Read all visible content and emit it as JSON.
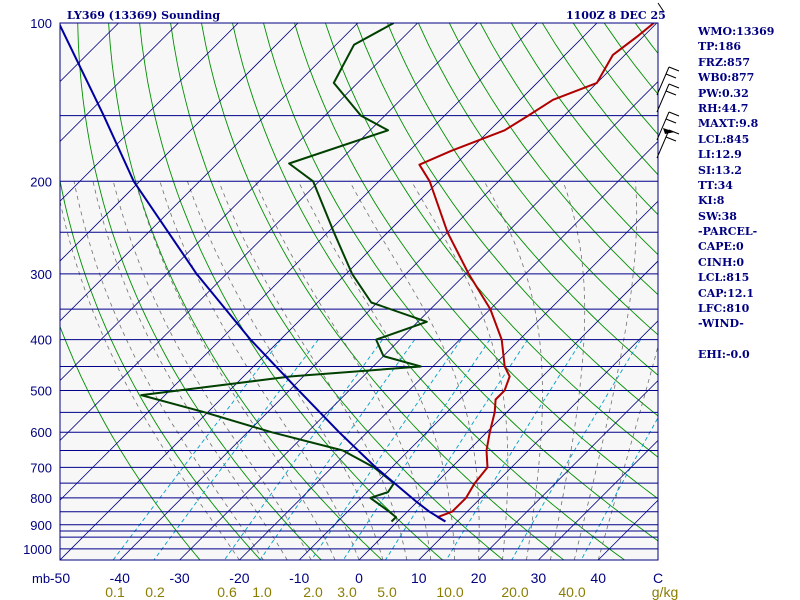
{
  "header": {
    "title": "LY369 (13369) Sounding",
    "datetime": "1100Z  8 DEC 25"
  },
  "indices": [
    "WMO:13369",
    "TP:186",
    "FRZ:857",
    "WB0:877",
    "PW:0.32",
    "RH:44.7",
    "MAXT:9.8",
    "LCL:845",
    "LI:12.9",
    "SI:13.2",
    "TT:34",
    "KI:8",
    "SW:38",
    "-PARCEL-",
    "CAPE:0",
    "CINH:0",
    "LCL:815",
    "CAP:12.1",
    "LFC:810",
    "-WIND-",
    "",
    "EHI:-0.0"
  ],
  "chart_data": {
    "type": "line",
    "title": "LY369 (13369) Sounding",
    "chart_kind": "skew-T log-P",
    "pressure_ticks": [
      "100",
      "200",
      "300",
      "400",
      "500",
      "600",
      "700",
      "800",
      "900",
      "1000"
    ],
    "pressure_axis_label": "mb",
    "temperature_ticks": [
      "-50",
      "-40",
      "-30",
      "-20",
      "-10",
      "0",
      "10",
      "20",
      "30",
      "40",
      "C"
    ],
    "mixing_ratio_ticks": [
      "0.1",
      "0.2",
      "0.6",
      "1.0",
      "2.0",
      "3.0",
      "5.0",
      "10.0",
      "20.0",
      "40.0",
      "g/kg"
    ],
    "pressure_range_hPa": [
      100,
      1050
    ],
    "temperature_range_at_surface_C": [
      -50,
      50
    ],
    "isobar_levels_hPa": [
      100,
      150,
      200,
      250,
      300,
      350,
      400,
      450,
      500,
      550,
      600,
      650,
      700,
      750,
      800,
      850,
      900,
      925,
      950,
      1000
    ],
    "series": [
      {
        "name": "Temperature",
        "color": "#b00000",
        "points": [
          {
            "p": 887,
            "t": 8.0
          },
          {
            "p": 870,
            "t": 6.0
          },
          {
            "p": 850,
            "t": 7.5
          },
          {
            "p": 800,
            "t": 7.5
          },
          {
            "p": 750,
            "t": 6.5
          },
          {
            "p": 700,
            "t": 6.0
          },
          {
            "p": 650,
            "t": 3.0
          },
          {
            "p": 600,
            "t": 0.5
          },
          {
            "p": 550,
            "t": -2.0
          },
          {
            "p": 520,
            "t": -4.0
          },
          {
            "p": 500,
            "t": -4.0
          },
          {
            "p": 470,
            "t": -5.5
          },
          {
            "p": 450,
            "t": -8.0
          },
          {
            "p": 400,
            "t": -13.0
          },
          {
            "p": 350,
            "t": -20.0
          },
          {
            "p": 300,
            "t": -29.5
          },
          {
            "p": 250,
            "t": -40.0
          },
          {
            "p": 200,
            "t": -51.5
          },
          {
            "p": 186,
            "t": -56.0
          },
          {
            "p": 175,
            "t": -53.0
          },
          {
            "p": 160,
            "t": -47.5
          },
          {
            "p": 150,
            "t": -46.0
          },
          {
            "p": 140,
            "t": -44.5
          },
          {
            "p": 130,
            "t": -40.0
          },
          {
            "p": 115,
            "t": -42.0
          },
          {
            "p": 106,
            "t": -41.0
          },
          {
            "p": 100,
            "t": -40.5
          }
        ]
      },
      {
        "name": "Dewpoint",
        "color": "#004000",
        "points": [
          {
            "p": 887,
            "t": -1.0
          },
          {
            "p": 870,
            "t": -1.0
          },
          {
            "p": 850,
            "t": -3.0
          },
          {
            "p": 800,
            "t": -8.5
          },
          {
            "p": 780,
            "t": -6.5
          },
          {
            "p": 750,
            "t": -7.0
          },
          {
            "p": 700,
            "t": -13.0
          },
          {
            "p": 650,
            "t": -21.0
          },
          {
            "p": 600,
            "t": -36.0
          },
          {
            "p": 550,
            "t": -50.5
          },
          {
            "p": 510,
            "t": -64.0
          },
          {
            "p": 470,
            "t": -42.0
          },
          {
            "p": 450,
            "t": -22.0
          },
          {
            "p": 430,
            "t": -30.0
          },
          {
            "p": 400,
            "t": -34.0
          },
          {
            "p": 370,
            "t": -28.5
          },
          {
            "p": 340,
            "t": -41.0
          },
          {
            "p": 300,
            "t": -49.0
          },
          {
            "p": 250,
            "t": -59.0
          },
          {
            "p": 200,
            "t": -71.0
          },
          {
            "p": 185,
            "t": -78.0
          },
          {
            "p": 160,
            "t": -67.0
          },
          {
            "p": 150,
            "t": -74.0
          },
          {
            "p": 130,
            "t": -84.0
          },
          {
            "p": 110,
            "t": -87.0
          },
          {
            "p": 100,
            "t": -84.0
          }
        ]
      },
      {
        "name": "Parcel",
        "color": "#0000a0",
        "points": [
          {
            "p": 887,
            "t": 8.0
          },
          {
            "p": 850,
            "t": 3.7
          },
          {
            "p": 815,
            "t": 0.0
          },
          {
            "p": 700,
            "t": -12.7
          },
          {
            "p": 600,
            "t": -24.7
          },
          {
            "p": 500,
            "t": -38.4
          },
          {
            "p": 400,
            "t": -55.0
          },
          {
            "p": 300,
            "t": -75.0
          },
          {
            "p": 200,
            "t": -101.0
          },
          {
            "p": 150,
            "t": -117.0
          },
          {
            "p": 100,
            "t": -140.0
          }
        ]
      }
    ]
  },
  "colors": {
    "isobar": "#00008b",
    "isotherm": "#000080",
    "dry_adiabat": "#009000",
    "moist_adiabat": "#707070",
    "mixing_ratio": "#00a0c8",
    "temperature": "#b00000",
    "dewpoint": "#004000",
    "parcel": "#0000a0",
    "axis_text": "#000080",
    "mixing_text": "#8b7d00",
    "text": "#000080"
  },
  "wind_barb_icon": "wind-barb-icon"
}
